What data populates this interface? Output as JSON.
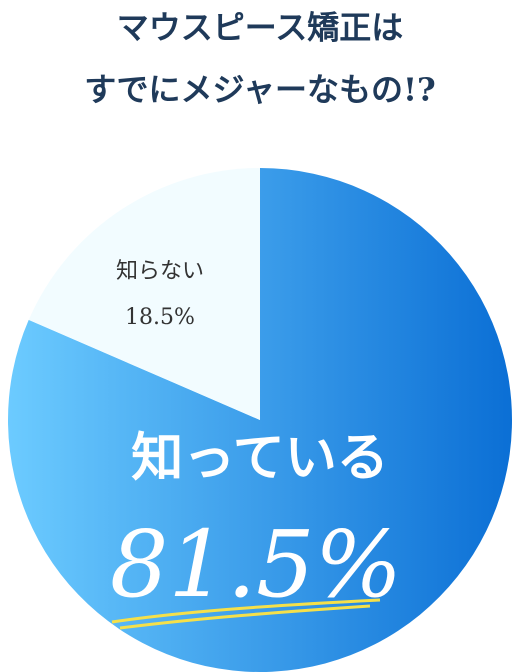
{
  "chart_data": {
    "type": "pie",
    "title": [
      "マウスピース矯正は",
      "すでにメジャーなもの!?"
    ],
    "categories": [
      "知っている",
      "知らない"
    ],
    "values": [
      81.5,
      18.5
    ],
    "value_labels": [
      "81.5%",
      "18.5%"
    ],
    "colors": [
      "#0b6fd5",
      "#f2fcff"
    ],
    "gradient_start": "#6ccbff"
  }
}
